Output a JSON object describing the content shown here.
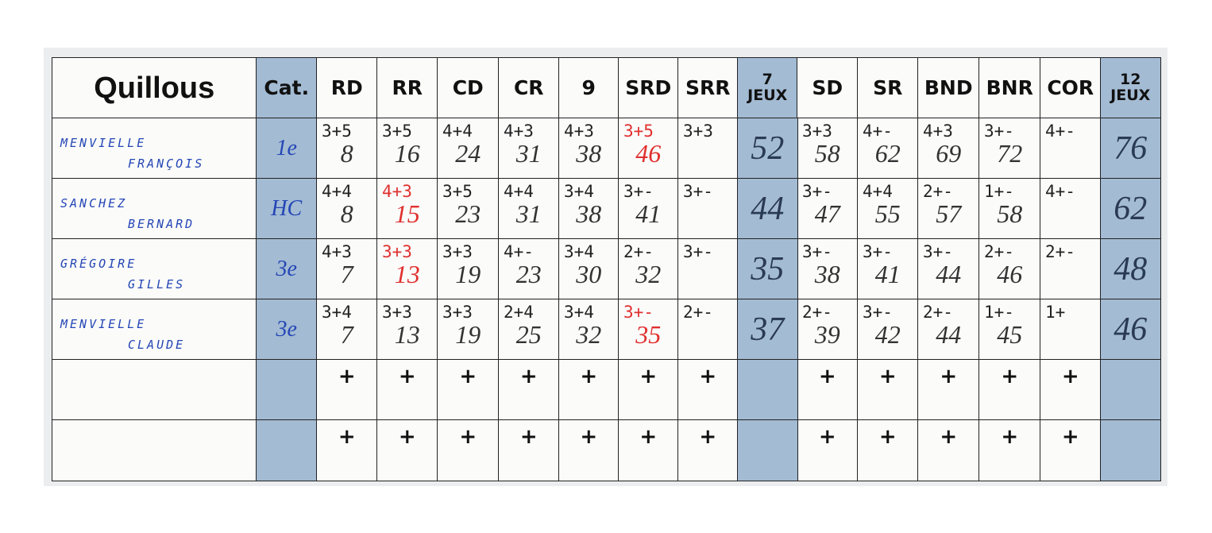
{
  "header": {
    "title": "Quillous",
    "cat": "Cat.",
    "games_a": [
      "RD",
      "RR",
      "CD",
      "CR",
      "9",
      "SRD",
      "SRR"
    ],
    "subtotal_a": {
      "num": "7",
      "word": "JEUX"
    },
    "games_b": [
      "SD",
      "SR",
      "BND",
      "BNR",
      "COR"
    ],
    "subtotal_b": {
      "num": "12",
      "word": "JEUX"
    }
  },
  "rows": [
    {
      "name": [
        "MENVIELLE",
        "FRANÇOIS"
      ],
      "cat": "1e",
      "cells": [
        {
          "score": "3+5",
          "total": "8"
        },
        {
          "score": "3+5",
          "total": "16"
        },
        {
          "score": "4+4",
          "total": "24"
        },
        {
          "score": "4+3",
          "total": "31"
        },
        {
          "score": "4+3",
          "total": "38"
        },
        {
          "score": "3+5",
          "total": "46",
          "red": true
        },
        {
          "score": "3+3"
        },
        {
          "score": "3+3",
          "total": "58"
        },
        {
          "score": "4+-",
          "total": "62"
        },
        {
          "score": "4+3",
          "total": "69"
        },
        {
          "score": "3+-",
          "total": "72"
        },
        {
          "score": "4+-"
        }
      ],
      "total_7": "52",
      "total_12": "76"
    },
    {
      "name": [
        "SANCHEZ",
        "BERNARD"
      ],
      "cat": "HC",
      "cells": [
        {
          "score": "4+4",
          "total": "8"
        },
        {
          "score": "4+3",
          "total": "15",
          "red": true
        },
        {
          "score": "3+5",
          "total": "23"
        },
        {
          "score": "4+4",
          "total": "31"
        },
        {
          "score": "3+4",
          "total": "38"
        },
        {
          "score": "3+-",
          "total": "41"
        },
        {
          "score": "3+-"
        },
        {
          "score": "3+-",
          "total": "47"
        },
        {
          "score": "4+4",
          "total": "55"
        },
        {
          "score": "2+-",
          "total": "57"
        },
        {
          "score": "1+-",
          "total": "58"
        },
        {
          "score": "4+-"
        }
      ],
      "total_7": "44",
      "total_12": "62"
    },
    {
      "name": [
        "GRÉGOIRE",
        "GILLES"
      ],
      "cat": "3e",
      "cells": [
        {
          "score": "4+3",
          "total": "7"
        },
        {
          "score": "3+3",
          "total": "13",
          "red": true
        },
        {
          "score": "3+3",
          "total": "19"
        },
        {
          "score": "4+-",
          "total": "23"
        },
        {
          "score": "3+4",
          "total": "30"
        },
        {
          "score": "2+-",
          "total": "32"
        },
        {
          "score": "3+-"
        },
        {
          "score": "3+-",
          "total": "38"
        },
        {
          "score": "3+-",
          "total": "41"
        },
        {
          "score": "3+-",
          "total": "44"
        },
        {
          "score": "2+-",
          "total": "46"
        },
        {
          "score": "2+-"
        }
      ],
      "total_7": "35",
      "total_12": "48"
    },
    {
      "name": [
        "MENVIELLE",
        "CLAUDE"
      ],
      "cat": "3e",
      "cells": [
        {
          "score": "3+4",
          "total": "7"
        },
        {
          "score": "3+3",
          "total": "13"
        },
        {
          "score": "3+3",
          "total": "19"
        },
        {
          "score": "2+4",
          "total": "25"
        },
        {
          "score": "3+4",
          "total": "32"
        },
        {
          "score": "3+-",
          "total": "35",
          "red": true
        },
        {
          "score": "2+-"
        },
        {
          "score": "2+-",
          "total": "39"
        },
        {
          "score": "3+-",
          "total": "42"
        },
        {
          "score": "2+-",
          "total": "44"
        },
        {
          "score": "1+-",
          "total": "45"
        },
        {
          "score": "1+"
        }
      ],
      "total_7": "37",
      "total_12": "46"
    },
    {
      "cells": [
        {
          "score": "+"
        },
        {
          "score": "+"
        },
        {
          "score": "+"
        },
        {
          "score": "+"
        },
        {
          "score": "+"
        },
        {
          "score": "+"
        },
        {
          "score": "+"
        },
        {
          "score": "+"
        },
        {
          "score": "+"
        },
        {
          "score": "+"
        },
        {
          "score": "+"
        },
        {
          "score": "+"
        }
      ]
    },
    {
      "cells": [
        {
          "score": "+"
        },
        {
          "score": "+"
        },
        {
          "score": "+"
        },
        {
          "score": "+"
        },
        {
          "score": "+"
        },
        {
          "score": "+"
        },
        {
          "score": "+"
        },
        {
          "score": "+"
        },
        {
          "score": "+"
        },
        {
          "score": "+"
        },
        {
          "score": "+"
        },
        {
          "score": "+"
        }
      ]
    }
  ]
}
